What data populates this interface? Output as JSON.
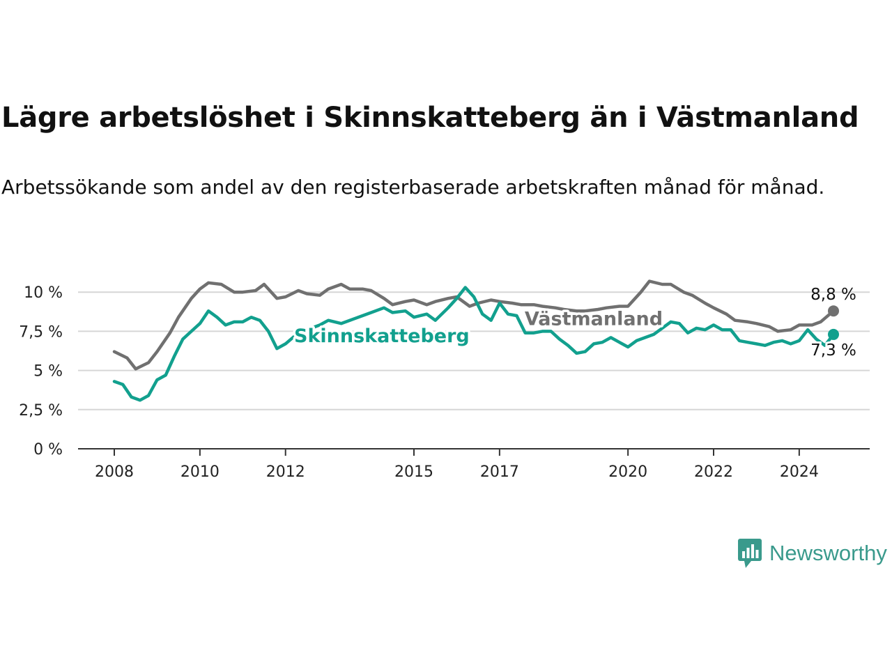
{
  "title": "Lägre arbetslöshet i Skinnskatteberg än i Västmanland",
  "subtitle": "Arbetssökande som andel av den registerbaserade arbetskraften månad för månad.",
  "brand": {
    "name": "Newsworthy"
  },
  "colors": {
    "vastmanland": "#707070",
    "skinnskatteberg": "#12a08e",
    "grid": "#d6d6d6",
    "axis": "#333333",
    "brand": "#3a9a8c"
  },
  "chart_data": {
    "type": "line",
    "xlim": [
      2008,
      2024.8
    ],
    "ylim": [
      0,
      10.5
    ],
    "y_ticks": [
      0,
      2.5,
      5,
      7.5,
      10
    ],
    "y_tick_labels": [
      "0 %",
      "2,5 %",
      "5 %",
      "7,5 %",
      "10 %"
    ],
    "x_ticks": [
      2008,
      2010,
      2012,
      2015,
      2017,
      2020,
      2022,
      2024
    ],
    "x_tick_labels": [
      "2008",
      "2010",
      "2012",
      "2015",
      "2017",
      "2020",
      "2022",
      "2024"
    ],
    "grid": true,
    "series": [
      {
        "name": "Västmanland",
        "end_label": "8,8 %",
        "points": [
          [
            2008.0,
            6.2
          ],
          [
            2008.3,
            5.8
          ],
          [
            2008.5,
            5.1
          ],
          [
            2008.8,
            5.5
          ],
          [
            2009.0,
            6.2
          ],
          [
            2009.3,
            7.4
          ],
          [
            2009.5,
            8.4
          ],
          [
            2009.8,
            9.6
          ],
          [
            2010.0,
            10.2
          ],
          [
            2010.2,
            10.6
          ],
          [
            2010.5,
            10.5
          ],
          [
            2010.8,
            10.0
          ],
          [
            2011.0,
            10.0
          ],
          [
            2011.3,
            10.1
          ],
          [
            2011.5,
            10.5
          ],
          [
            2011.8,
            9.6
          ],
          [
            2012.0,
            9.7
          ],
          [
            2012.3,
            10.1
          ],
          [
            2012.5,
            9.9
          ],
          [
            2012.8,
            9.8
          ],
          [
            2013.0,
            10.2
          ],
          [
            2013.3,
            10.5
          ],
          [
            2013.5,
            10.2
          ],
          [
            2013.8,
            10.2
          ],
          [
            2014.0,
            10.1
          ],
          [
            2014.3,
            9.6
          ],
          [
            2014.5,
            9.2
          ],
          [
            2014.8,
            9.4
          ],
          [
            2015.0,
            9.5
          ],
          [
            2015.3,
            9.2
          ],
          [
            2015.5,
            9.4
          ],
          [
            2015.8,
            9.6
          ],
          [
            2016.0,
            9.7
          ],
          [
            2016.3,
            9.1
          ],
          [
            2016.5,
            9.3
          ],
          [
            2016.8,
            9.5
          ],
          [
            2017.0,
            9.4
          ],
          [
            2017.3,
            9.3
          ],
          [
            2017.5,
            9.2
          ],
          [
            2017.8,
            9.2
          ],
          [
            2018.0,
            9.1
          ],
          [
            2018.3,
            9.0
          ],
          [
            2018.5,
            8.9
          ],
          [
            2018.8,
            8.8
          ],
          [
            2019.0,
            8.8
          ],
          [
            2019.3,
            8.9
          ],
          [
            2019.5,
            9.0
          ],
          [
            2019.8,
            9.1
          ],
          [
            2020.0,
            9.1
          ],
          [
            2020.3,
            10.0
          ],
          [
            2020.5,
            10.7
          ],
          [
            2020.8,
            10.5
          ],
          [
            2021.0,
            10.5
          ],
          [
            2021.3,
            10.0
          ],
          [
            2021.5,
            9.8
          ],
          [
            2021.8,
            9.3
          ],
          [
            2022.0,
            9.0
          ],
          [
            2022.3,
            8.6
          ],
          [
            2022.5,
            8.2
          ],
          [
            2022.8,
            8.1
          ],
          [
            2023.0,
            8.0
          ],
          [
            2023.3,
            7.8
          ],
          [
            2023.5,
            7.5
          ],
          [
            2023.8,
            7.6
          ],
          [
            2024.0,
            7.9
          ],
          [
            2024.3,
            7.9
          ],
          [
            2024.5,
            8.1
          ],
          [
            2024.8,
            8.8
          ]
        ]
      },
      {
        "name": "Skinnskatteberg",
        "end_label": "7,3 %",
        "points": [
          [
            2008.0,
            4.3
          ],
          [
            2008.2,
            4.1
          ],
          [
            2008.4,
            3.3
          ],
          [
            2008.6,
            3.1
          ],
          [
            2008.8,
            3.4
          ],
          [
            2009.0,
            4.4
          ],
          [
            2009.2,
            4.7
          ],
          [
            2009.4,
            5.9
          ],
          [
            2009.6,
            7.0
          ],
          [
            2009.8,
            7.5
          ],
          [
            2010.0,
            8.0
          ],
          [
            2010.2,
            8.8
          ],
          [
            2010.4,
            8.4
          ],
          [
            2010.6,
            7.9
          ],
          [
            2010.8,
            8.1
          ],
          [
            2011.0,
            8.1
          ],
          [
            2011.2,
            8.4
          ],
          [
            2011.4,
            8.2
          ],
          [
            2011.6,
            7.5
          ],
          [
            2011.8,
            6.4
          ],
          [
            2012.0,
            6.7
          ],
          [
            2012.3,
            7.4
          ],
          [
            2012.5,
            7.6
          ],
          [
            2012.8,
            7.9
          ],
          [
            2013.0,
            8.2
          ],
          [
            2013.3,
            8.0
          ],
          [
            2013.5,
            8.2
          ],
          [
            2013.8,
            8.5
          ],
          [
            2014.0,
            8.7
          ],
          [
            2014.3,
            9.0
          ],
          [
            2014.5,
            8.7
          ],
          [
            2014.8,
            8.8
          ],
          [
            2015.0,
            8.4
          ],
          [
            2015.3,
            8.6
          ],
          [
            2015.5,
            8.2
          ],
          [
            2015.8,
            9.0
          ],
          [
            2016.0,
            9.6
          ],
          [
            2016.2,
            10.3
          ],
          [
            2016.4,
            9.7
          ],
          [
            2016.6,
            8.6
          ],
          [
            2016.8,
            8.2
          ],
          [
            2017.0,
            9.3
          ],
          [
            2017.2,
            8.6
          ],
          [
            2017.4,
            8.5
          ],
          [
            2017.6,
            7.4
          ],
          [
            2017.8,
            7.4
          ],
          [
            2018.0,
            7.5
          ],
          [
            2018.2,
            7.5
          ],
          [
            2018.4,
            7.0
          ],
          [
            2018.6,
            6.6
          ],
          [
            2018.8,
            6.1
          ],
          [
            2019.0,
            6.2
          ],
          [
            2019.2,
            6.7
          ],
          [
            2019.4,
            6.8
          ],
          [
            2019.6,
            7.1
          ],
          [
            2019.8,
            6.8
          ],
          [
            2020.0,
            6.5
          ],
          [
            2020.2,
            6.9
          ],
          [
            2020.4,
            7.1
          ],
          [
            2020.6,
            7.3
          ],
          [
            2020.8,
            7.7
          ],
          [
            2021.0,
            8.1
          ],
          [
            2021.2,
            8.0
          ],
          [
            2021.4,
            7.4
          ],
          [
            2021.6,
            7.7
          ],
          [
            2021.8,
            7.6
          ],
          [
            2022.0,
            7.9
          ],
          [
            2022.2,
            7.6
          ],
          [
            2022.4,
            7.6
          ],
          [
            2022.6,
            6.9
          ],
          [
            2022.8,
            6.8
          ],
          [
            2023.0,
            6.7
          ],
          [
            2023.2,
            6.6
          ],
          [
            2023.4,
            6.8
          ],
          [
            2023.6,
            6.9
          ],
          [
            2023.8,
            6.7
          ],
          [
            2024.0,
            6.9
          ],
          [
            2024.2,
            7.6
          ],
          [
            2024.4,
            7.0
          ],
          [
            2024.6,
            6.6
          ],
          [
            2024.8,
            7.3
          ]
        ]
      }
    ]
  }
}
